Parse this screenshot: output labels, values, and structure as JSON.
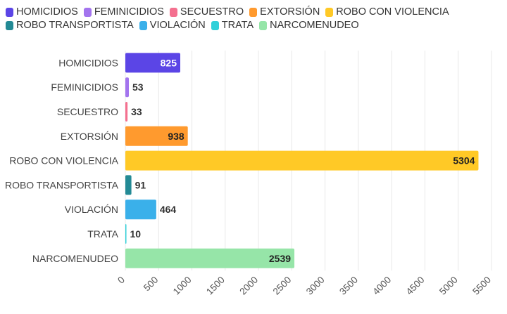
{
  "chart_data": {
    "type": "bar",
    "orientation": "horizontal",
    "title": "",
    "xlabel": "",
    "ylabel": "",
    "categories": [
      "HOMICIDIOS",
      "FEMINICIDIOS",
      "SECUESTRO",
      "EXTORSIÓN",
      "ROBO CON VIOLENCIA",
      "ROBO TRANSPORTISTA",
      "VIOLACIÓN",
      "TRATA",
      "NARCOMENUDEO"
    ],
    "values": [
      825,
      53,
      33,
      938,
      5304,
      91,
      464,
      10,
      2539
    ],
    "colors": [
      "#5b45e6",
      "#a374ee",
      "#f4708f",
      "#ff9a2e",
      "#ffc926",
      "#238a95",
      "#3ab0ea",
      "#30d0d9",
      "#96e5a8"
    ],
    "label_colors": [
      "#ffffff",
      "#333333",
      "#333333",
      "#222222",
      "#222222",
      "#333333",
      "#ffffff",
      "#333333",
      "#222222"
    ],
    "xlim": [
      0,
      5500
    ],
    "xticks": [
      0,
      500,
      1000,
      1500,
      2000,
      2500,
      3000,
      3500,
      4000,
      4500,
      5000,
      5500
    ],
    "grid": true,
    "legend_position": "top-left"
  }
}
